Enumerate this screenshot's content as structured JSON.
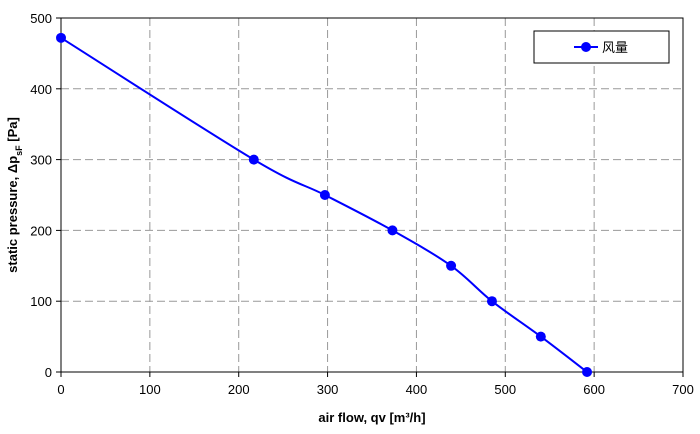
{
  "chart_data": {
    "type": "line",
    "title": "",
    "xlabel": "air flow, qv [m³/h]",
    "ylabel": "static pressure, Δp",
    "ylabel_subscript": "sF",
    "ylabel_unit": " [Pa]",
    "xlim": [
      0,
      700
    ],
    "ylim": [
      0,
      500
    ],
    "x_ticks": [
      "0",
      "100",
      "200",
      "300",
      "400",
      "500",
      "600",
      "700"
    ],
    "y_ticks": [
      "0",
      "100",
      "200",
      "300",
      "400",
      "500"
    ],
    "grid": true,
    "legend_position": "top-right",
    "colors": {
      "series": "#0000ff",
      "grid": "#999999"
    },
    "series": [
      {
        "name": "风量",
        "x": [
          0,
          217,
          297,
          373,
          439,
          485,
          540,
          592
        ],
        "y": [
          472,
          300,
          250,
          200,
          150,
          100,
          50,
          0
        ]
      }
    ]
  }
}
